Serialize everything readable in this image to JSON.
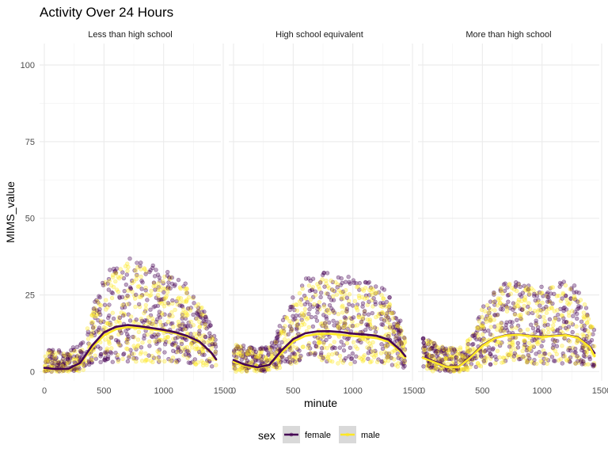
{
  "chart_data": {
    "type": "scatter",
    "title": "Activity Over 24 Hours",
    "xlabel": "minute",
    "ylabel": "MIMS_value",
    "xlim": [
      -40,
      1480
    ],
    "ylim": [
      -3,
      107
    ],
    "x_ticks": [
      0,
      500,
      1000,
      1500
    ],
    "x_tick_labels": [
      "0",
      "500",
      "1000",
      "1500"
    ],
    "y_ticks": [
      0,
      25,
      50,
      75,
      100
    ],
    "y_tick_labels": [
      "0",
      "25",
      "50",
      "75",
      "100"
    ],
    "grid": true,
    "legend": {
      "title": "sex",
      "position": "bottom",
      "entries": [
        {
          "label": "female",
          "color": "#440154"
        },
        {
          "label": "male",
          "color": "#FDE725"
        }
      ]
    },
    "colors": {
      "female": "#440154",
      "male": "#FDE725",
      "panel_bg": "#ffffff",
      "grid": "#ebebeb"
    },
    "facets": [
      {
        "label": "Less than high school",
        "series": [
          {
            "name": "female",
            "smooth": {
              "x": [
                0,
                100,
                200,
                300,
                400,
                500,
                600,
                700,
                800,
                900,
                1000,
                1100,
                1200,
                1300,
                1400,
                1440
              ],
              "y": [
                1.2,
                0.8,
                0.9,
                2.8,
                8.5,
                12.8,
                14.6,
                15.2,
                14.8,
                14.2,
                13.6,
                12.8,
                11.6,
                9.8,
                6.2,
                4.0
              ]
            }
          },
          {
            "name": "male",
            "smooth": {
              "x": [
                0,
                100,
                200,
                300,
                400,
                500,
                600,
                700,
                800,
                900,
                1000,
                1100,
                1200,
                1300,
                1400,
                1440
              ],
              "y": [
                1.0,
                0.7,
                0.8,
                2.5,
                7.8,
                11.8,
                13.8,
                14.5,
                14.2,
                13.8,
                13.2,
                12.5,
                11.3,
                9.5,
                6.0,
                3.8
              ]
            }
          }
        ],
        "smooth_order": [
          "male",
          "female"
        ]
      },
      {
        "label": "High school equivalent",
        "series": [
          {
            "name": "female",
            "smooth": {
              "x": [
                0,
                100,
                200,
                300,
                400,
                500,
                600,
                700,
                800,
                900,
                1000,
                1100,
                1200,
                1300,
                1400,
                1440
              ],
              "y": [
                3.8,
                2.2,
                1.4,
                2.2,
                6.8,
                10.6,
                12.5,
                13.1,
                13.2,
                12.9,
                12.4,
                12.1,
                11.7,
                10.4,
                7.0,
                5.0
              ]
            }
          },
          {
            "name": "male",
            "smooth": {
              "x": [
                0,
                100,
                200,
                300,
                400,
                500,
                600,
                700,
                800,
                900,
                1000,
                1100,
                1200,
                1300,
                1400,
                1440
              ],
              "y": [
                3.2,
                1.8,
                1.2,
                2.0,
                6.0,
                9.8,
                11.6,
                12.2,
                12.4,
                12.0,
                11.6,
                11.3,
                10.9,
                9.8,
                6.5,
                4.6
              ]
            }
          }
        ],
        "smooth_order": [
          "male",
          "female"
        ]
      },
      {
        "label": "More than high school",
        "series": [
          {
            "name": "female",
            "smooth": {
              "x": [
                0,
                100,
                200,
                300,
                400,
                500,
                600,
                700,
                800,
                900,
                1000,
                1100,
                1200,
                1300,
                1400,
                1440
              ],
              "y": [
                4.6,
                3.2,
                1.6,
                1.6,
                4.8,
                8.6,
                10.9,
                11.9,
                12.1,
                11.7,
                11.4,
                11.7,
                12.0,
                11.2,
                8.2,
                6.0
              ]
            }
          },
          {
            "name": "male",
            "smooth": {
              "x": [
                0,
                100,
                200,
                300,
                400,
                500,
                600,
                700,
                800,
                900,
                1000,
                1100,
                1200,
                1300,
                1400,
                1440
              ],
              "y": [
                4.5,
                3.0,
                1.5,
                1.5,
                4.6,
                8.4,
                10.8,
                11.8,
                12.0,
                11.6,
                11.3,
                11.6,
                11.9,
                11.0,
                8.0,
                5.0
              ]
            }
          }
        ],
        "smooth_order": [
          "female",
          "male"
        ]
      }
    ]
  }
}
